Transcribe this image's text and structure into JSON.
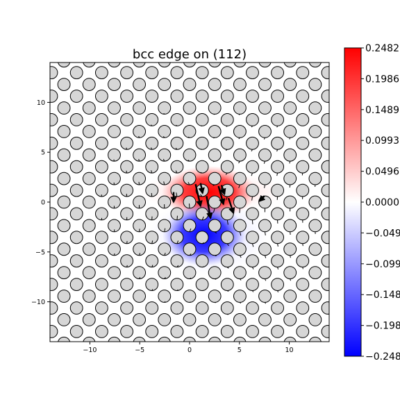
{
  "chart_data": {
    "type": "heatmap",
    "title": "bcc edge on (112)",
    "xlabel": "",
    "ylabel": "",
    "xlim": [
      -14,
      14
    ],
    "ylim": [
      -14,
      14
    ],
    "x_ticks": [
      -10,
      -5,
      0,
      5,
      10
    ],
    "y_ticks": [
      -10,
      -5,
      0,
      5,
      10
    ],
    "x_tick_labels": [
      "−10",
      "−5",
      "0",
      "5",
      "10"
    ],
    "y_tick_labels": [
      "−10",
      "−5",
      "0",
      "5",
      "10"
    ],
    "grid": false,
    "plot_layers": [
      "atomic strain field (heatmap)",
      "atom positions (grey circles)",
      "displacement vectors (arrows)"
    ],
    "colorbar": {
      "colormap": "bwr",
      "range": [
        -0.2482,
        0.2482
      ],
      "tick_values": [
        0.2482,
        0.1986,
        0.1489,
        0.0993,
        0.0496,
        0.0,
        -0.0496,
        -0.0993,
        -0.1489,
        -0.1986,
        -0.2482
      ],
      "tick_labels": [
        "0.2482",
        "0.1986",
        "0.1489",
        "0.0993",
        "0.0496",
        "0.0000",
        "−0.049",
        "−0.099",
        "−0.148",
        "−0.198",
        "−0.248"
      ]
    },
    "field_lobes": [
      {
        "sign": "positive",
        "center": [
          2.6,
          1.0
        ],
        "peak": 0.2482
      },
      {
        "sign": "negative",
        "center": [
          2.2,
          -3.4
        ],
        "peak": -0.2482
      }
    ],
    "atom_lattice": {
      "row_spacing": 1.18,
      "row_shift": 1.26,
      "atom_spacing": 2.52,
      "atom_radius": 0.62
    },
    "arrows": [
      {
        "x": 0.6,
        "y": 1.8,
        "dx": 0.5,
        "dy": -2.2
      },
      {
        "x": 1.7,
        "y": 0.6,
        "dx": 0.4,
        "dy": -2.2
      },
      {
        "x": 2.9,
        "y": 1.6,
        "dx": 0.5,
        "dy": -1.8
      },
      {
        "x": 3.9,
        "y": 0.4,
        "dx": 0.5,
        "dy": -1.5
      },
      {
        "x": 1.1,
        "y": 1.9,
        "dx": 0.2,
        "dy": -1.0
      },
      {
        "x": 3.2,
        "y": 1.7,
        "dx": 0.3,
        "dy": -0.9
      },
      {
        "x": -1.6,
        "y": 1.0,
        "dx": 0.0,
        "dy": -1.0
      },
      {
        "x": 7.5,
        "y": 0.6,
        "dx": -0.5,
        "dy": -0.5
      }
    ]
  }
}
